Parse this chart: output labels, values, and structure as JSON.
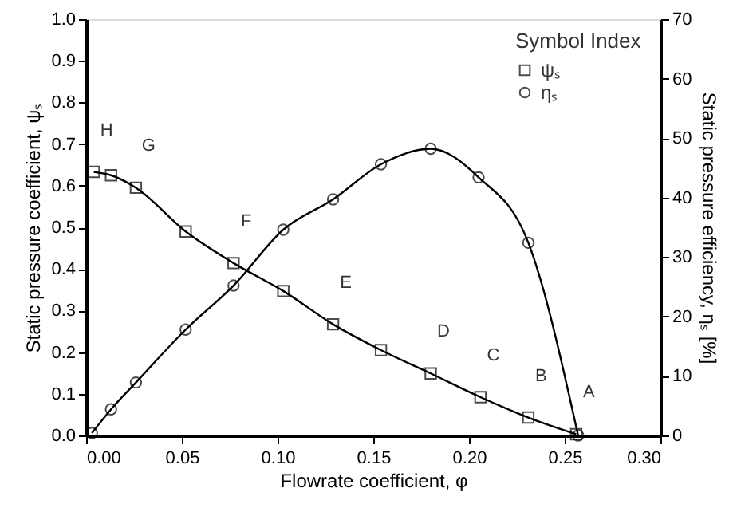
{
  "chart_data": {
    "type": "line",
    "xlabel": "Flowrate coefficient, φ",
    "ylabel": "Static pressure coefficient, ψₛ",
    "y2label": "Static pressure efficiency, ηₛ [%]",
    "legend_title": "Symbol  Index",
    "legend": "top right",
    "grid": false,
    "line_style": "solid",
    "xlim": [
      0,
      0.3
    ],
    "xticks": [
      {
        "value": 0,
        "label": "0.00"
      },
      {
        "value": 0.05,
        "label": "0.05"
      },
      {
        "value": 0.1,
        "label": "0.10"
      },
      {
        "value": 0.15,
        "label": "0.15"
      },
      {
        "value": 0.2,
        "label": "0.20"
      },
      {
        "value": 0.25,
        "label": "0.25"
      },
      {
        "value": 0.3,
        "label": "0.30"
      }
    ],
    "ylim": [
      0,
      1
    ],
    "yticks": [
      {
        "value": 0,
        "label": "0.0"
      },
      {
        "value": 0.1,
        "label": "0.1"
      },
      {
        "value": 0.2,
        "label": "0.2"
      },
      {
        "value": 0.3,
        "label": "0.3"
      },
      {
        "value": 0.4,
        "label": "0.4"
      },
      {
        "value": 0.5,
        "label": "0.5"
      },
      {
        "value": 0.6,
        "label": "0.6"
      },
      {
        "value": 0.7,
        "label": "0.7"
      },
      {
        "value": 0.8,
        "label": "0.8"
      },
      {
        "value": 0.9,
        "label": "0.9"
      },
      {
        "value": 1,
        "label": "1.0"
      }
    ],
    "y2lim": [
      0,
      70
    ],
    "y2ticks": [
      0,
      10,
      20,
      30,
      40,
      50,
      60,
      70
    ],
    "series": [
      {
        "name": "ψₛ",
        "color": "#000000",
        "marker": "square",
        "x": [
          0.004,
          0.013,
          0.026,
          0.052,
          0.077,
          0.103,
          0.129,
          0.154,
          0.18,
          0.206,
          0.231,
          0.256
        ],
        "values": [
          0.633,
          0.625,
          0.595,
          0.49,
          0.414,
          0.347,
          0.267,
          0.205,
          0.149,
          0.092,
          0.043,
          0.003
        ]
      },
      {
        "name": "ηₛ",
        "color": "#000000",
        "marker": "circle",
        "axis": "y2",
        "x": [
          0.003,
          0.013,
          0.026,
          0.052,
          0.077,
          0.103,
          0.129,
          0.154,
          0.18,
          0.205,
          0.231,
          0.257
        ],
        "values": [
          0.4,
          4.4,
          8.9,
          17.8,
          25.2,
          34.6,
          39.7,
          45.6,
          48.2,
          43.4,
          32.4,
          0
        ]
      }
    ],
    "annotations": [
      {
        "text": "H",
        "x": 0.004,
        "y": 0.633
      },
      {
        "text": "G",
        "x": 0.026,
        "y": 0.595
      },
      {
        "text": "F",
        "x": 0.077,
        "y": 0.414
      },
      {
        "text": "E",
        "x": 0.129,
        "y": 0.267
      },
      {
        "text": "D",
        "x": 0.18,
        "y": 0.149
      },
      {
        "text": "C",
        "x": 0.206,
        "y": 0.092
      },
      {
        "text": "B",
        "x": 0.231,
        "y": 0.043
      },
      {
        "text": "A",
        "x": 0.256,
        "y": 0.003
      }
    ]
  }
}
